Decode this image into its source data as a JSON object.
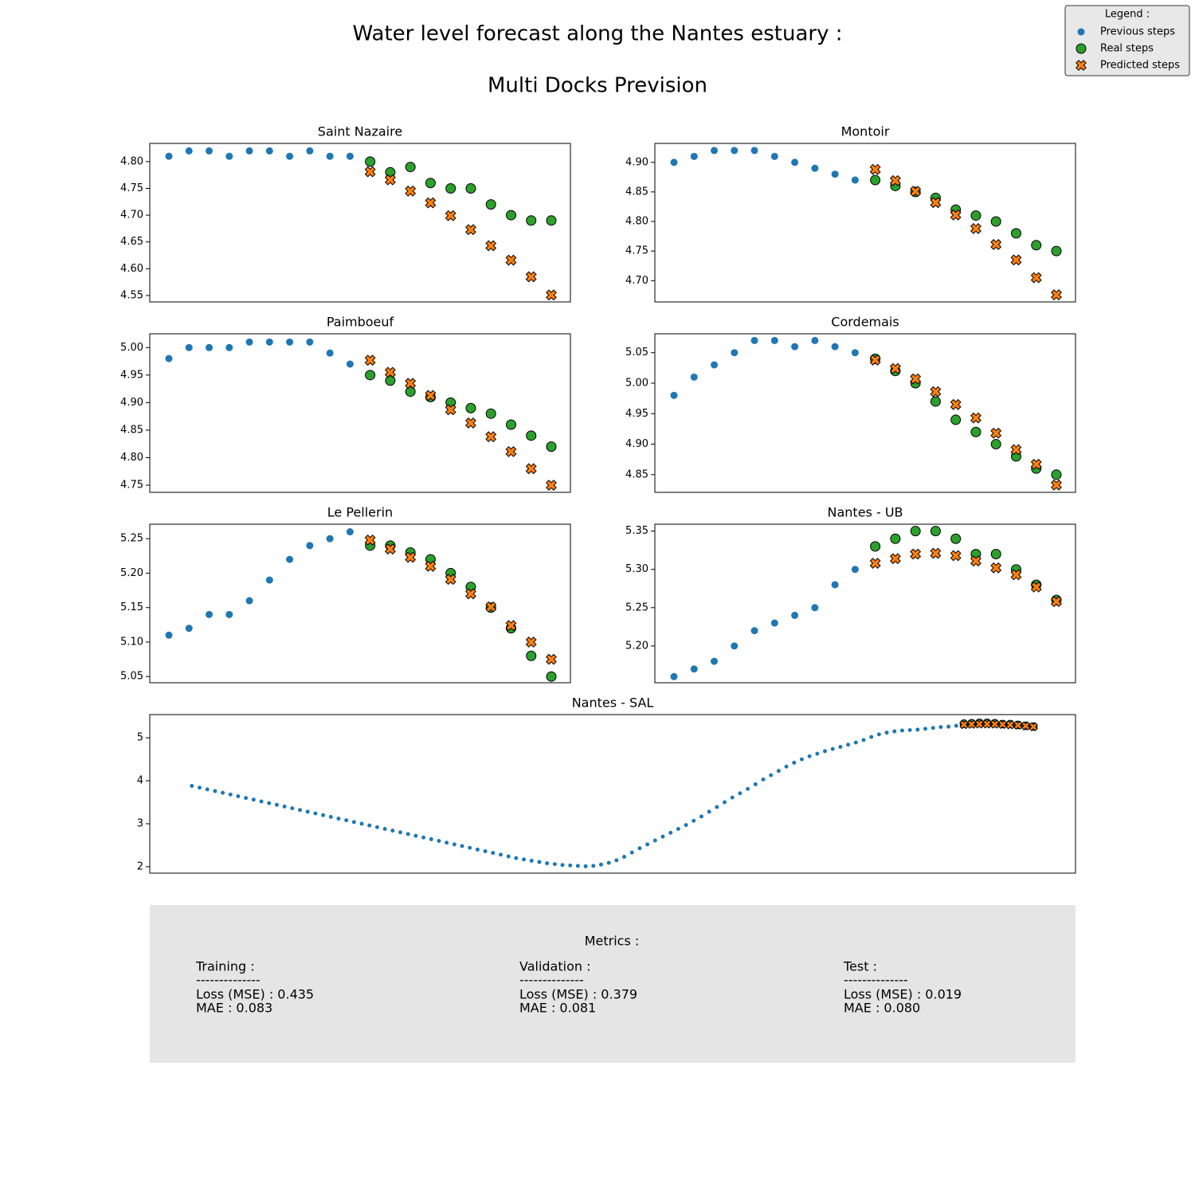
{
  "title": "Water level forecast along the Nantes estuary :",
  "subtitle": "Multi Docks Prevision",
  "legend_title": "Legend :",
  "metrics": {
    "title": "Metrics :",
    "sections": [
      {
        "title": "Training :",
        "separator": "--------------",
        "lines": [
          "Loss (MSE) :  0.435",
          "MAE :  0.083"
        ]
      },
      {
        "title": "Validation :",
        "separator": "--------------",
        "lines": [
          "Loss (MSE) :  0.379",
          "MAE :  0.081"
        ]
      },
      {
        "title": "Test :",
        "separator": "--------------",
        "lines": [
          "Loss (MSE) :  0.019",
          "MAE :  0.080"
        ]
      }
    ]
  },
  "chart_data": [
    {
      "type": "scatter",
      "title": "Saint Nazaire",
      "xlim": [
        -0.95,
        19.95
      ],
      "ylim": [
        4.538,
        4.834
      ],
      "yticks": [
        4.55,
        {
          "value": 4.6,
          "label": "4.60"
        },
        4.65,
        {
          "value": 4.7,
          "label": "4.70"
        },
        4.75,
        {
          "value": 4.8,
          "label": "4.80"
        }
      ],
      "series": [
        {
          "name": "Previous steps",
          "color": "#1f77b4",
          "marker": "dot",
          "x": [
            0,
            1,
            2,
            3,
            4,
            5,
            6,
            7,
            8,
            9
          ],
          "values": [
            4.81,
            4.82,
            4.82,
            4.81,
            4.82,
            4.82,
            4.81,
            4.82,
            4.81,
            4.81
          ]
        },
        {
          "name": "Real steps",
          "color": "#2ca02c",
          "marker": "circle",
          "x": [
            10,
            11,
            12,
            13,
            14,
            15,
            16,
            17,
            18,
            19
          ],
          "values": [
            4.8,
            4.78,
            4.79,
            4.76,
            4.75,
            4.75,
            4.72,
            4.7,
            4.69,
            4.69
          ]
        },
        {
          "name": "Predicted steps",
          "color": "#ff7f0e",
          "marker": "x",
          "x": [
            10,
            11,
            12,
            13,
            14,
            15,
            16,
            17,
            18,
            19
          ],
          "values": [
            4.781,
            4.766,
            4.745,
            4.723,
            4.699,
            4.673,
            4.643,
            4.616,
            4.585,
            4.551
          ]
        }
      ]
    },
    {
      "type": "scatter",
      "title": "Montoir",
      "xlim": [
        -0.95,
        19.95
      ],
      "ylim": [
        4.664,
        4.932
      ],
      "yticks": [
        {
          "value": 4.7,
          "label": "4.70"
        },
        4.75,
        {
          "value": 4.8,
          "label": "4.80"
        },
        4.85,
        {
          "value": 4.9,
          "label": "4.90"
        }
      ],
      "series": [
        {
          "name": "Previous steps",
          "color": "#1f77b4",
          "marker": "dot",
          "x": [
            0,
            1,
            2,
            3,
            4,
            5,
            6,
            7,
            8,
            9
          ],
          "values": [
            4.9,
            4.91,
            4.92,
            4.92,
            4.92,
            4.91,
            4.9,
            4.89,
            4.88,
            4.87
          ]
        },
        {
          "name": "Real steps",
          "color": "#2ca02c",
          "marker": "circle",
          "x": [
            10,
            11,
            12,
            13,
            14,
            15,
            16,
            17,
            18,
            19
          ],
          "values": [
            4.87,
            4.86,
            4.85,
            4.84,
            4.82,
            4.81,
            4.8,
            4.78,
            4.76,
            4.75
          ]
        },
        {
          "name": "Predicted steps",
          "color": "#ff7f0e",
          "marker": "x",
          "x": [
            10,
            11,
            12,
            13,
            14,
            15,
            16,
            17,
            18,
            19
          ],
          "values": [
            4.888,
            4.869,
            4.851,
            4.832,
            4.811,
            4.788,
            4.761,
            4.735,
            4.705,
            4.676
          ]
        }
      ]
    },
    {
      "type": "scatter",
      "title": "Paimboeuf",
      "xlim": [
        -0.95,
        19.95
      ],
      "ylim": [
        4.737,
        5.025
      ],
      "yticks": [
        4.75,
        {
          "value": 4.8,
          "label": "4.80"
        },
        4.85,
        {
          "value": 4.9,
          "label": "4.90"
        },
        4.95,
        {
          "value": 5,
          "label": "5.00"
        }
      ],
      "series": [
        {
          "name": "Previous steps",
          "color": "#1f77b4",
          "marker": "dot",
          "x": [
            0,
            1,
            2,
            3,
            4,
            5,
            6,
            7,
            8,
            9
          ],
          "values": [
            4.98,
            5.0,
            5.0,
            5.0,
            5.01,
            5.01,
            5.01,
            5.01,
            4.99,
            4.97
          ]
        },
        {
          "name": "Real steps",
          "color": "#2ca02c",
          "marker": "circle",
          "x": [
            10,
            11,
            12,
            13,
            14,
            15,
            16,
            17,
            18,
            19
          ],
          "values": [
            4.95,
            4.94,
            4.92,
            4.91,
            4.9,
            4.89,
            4.88,
            4.86,
            4.84,
            4.82
          ]
        },
        {
          "name": "Predicted steps",
          "color": "#ff7f0e",
          "marker": "x",
          "x": [
            10,
            11,
            12,
            13,
            14,
            15,
            16,
            17,
            18,
            19
          ],
          "values": [
            4.977,
            4.955,
            4.935,
            4.913,
            4.887,
            4.863,
            4.838,
            4.811,
            4.78,
            4.75
          ]
        }
      ]
    },
    {
      "type": "scatter",
      "title": "Cordemais",
      "xlim": [
        -0.95,
        19.95
      ],
      "ylim": [
        4.821,
        5.081
      ],
      "yticks": [
        4.85,
        {
          "value": 4.9,
          "label": "4.90"
        },
        4.95,
        {
          "value": 5,
          "label": "5.00"
        },
        5.05
      ],
      "series": [
        {
          "name": "Previous steps",
          "color": "#1f77b4",
          "marker": "dot",
          "x": [
            0,
            1,
            2,
            3,
            4,
            5,
            6,
            7,
            8,
            9
          ],
          "values": [
            4.98,
            5.01,
            5.03,
            5.05,
            5.07,
            5.07,
            5.06,
            5.07,
            5.06,
            5.05
          ]
        },
        {
          "name": "Real steps",
          "color": "#2ca02c",
          "marker": "circle",
          "x": [
            10,
            11,
            12,
            13,
            14,
            15,
            16,
            17,
            18,
            19
          ],
          "values": [
            5.04,
            5.02,
            5.0,
            4.97,
            4.94,
            4.92,
            4.9,
            4.88,
            4.86,
            4.85
          ]
        },
        {
          "name": "Predicted steps",
          "color": "#ff7f0e",
          "marker": "x",
          "x": [
            10,
            11,
            12,
            13,
            14,
            15,
            16,
            17,
            18,
            19
          ],
          "values": [
            5.038,
            5.024,
            5.007,
            4.986,
            4.965,
            4.943,
            4.918,
            4.891,
            4.867,
            4.833
          ]
        }
      ]
    },
    {
      "type": "scatter",
      "title": "Le Pellerin",
      "xlim": [
        -0.95,
        19.95
      ],
      "ylim": [
        5.041,
        5.271
      ],
      "yticks": [
        5.05,
        {
          "value": 5.1,
          "label": "5.10"
        },
        5.15,
        {
          "value": 5.2,
          "label": "5.20"
        },
        5.25
      ],
      "series": [
        {
          "name": "Previous steps",
          "color": "#1f77b4",
          "marker": "dot",
          "x": [
            0,
            1,
            2,
            3,
            4,
            5,
            6,
            7,
            8,
            9
          ],
          "values": [
            5.11,
            5.12,
            5.14,
            5.14,
            5.16,
            5.19,
            5.22,
            5.24,
            5.25,
            5.26
          ]
        },
        {
          "name": "Real steps",
          "color": "#2ca02c",
          "marker": "circle",
          "x": [
            10,
            11,
            12,
            13,
            14,
            15,
            16,
            17,
            18,
            19
          ],
          "values": [
            5.24,
            5.24,
            5.23,
            5.22,
            5.2,
            5.18,
            5.15,
            5.12,
            5.08,
            5.05
          ]
        },
        {
          "name": "Predicted steps",
          "color": "#ff7f0e",
          "marker": "x",
          "x": [
            10,
            11,
            12,
            13,
            14,
            15,
            16,
            17,
            18,
            19
          ],
          "values": [
            5.248,
            5.235,
            5.223,
            5.21,
            5.191,
            5.17,
            5.151,
            5.124,
            5.1,
            5.075
          ]
        }
      ]
    },
    {
      "type": "scatter",
      "title": "Nantes - UB",
      "xlim": [
        -0.95,
        19.95
      ],
      "ylim": [
        5.152,
        5.359
      ],
      "yticks": [
        {
          "value": 5.2,
          "label": "5.20"
        },
        5.25,
        {
          "value": 5.3,
          "label": "5.30"
        },
        5.35
      ],
      "series": [
        {
          "name": "Previous steps",
          "color": "#1f77b4",
          "marker": "dot",
          "x": [
            0,
            1,
            2,
            3,
            4,
            5,
            6,
            7,
            8,
            9
          ],
          "values": [
            5.16,
            5.17,
            5.18,
            5.2,
            5.22,
            5.23,
            5.24,
            5.25,
            5.28,
            5.3
          ]
        },
        {
          "name": "Real steps",
          "color": "#2ca02c",
          "marker": "circle",
          "x": [
            10,
            11,
            12,
            13,
            14,
            15,
            16,
            17,
            18,
            19
          ],
          "values": [
            5.33,
            5.34,
            5.35,
            5.35,
            5.34,
            5.32,
            5.32,
            5.3,
            5.28,
            5.26
          ]
        },
        {
          "name": "Predicted steps",
          "color": "#ff7f0e",
          "marker": "x",
          "x": [
            10,
            11,
            12,
            13,
            14,
            15,
            16,
            17,
            18,
            19
          ],
          "values": [
            5.308,
            5.314,
            5.32,
            5.321,
            5.318,
            5.311,
            5.302,
            5.293,
            5.277,
            5.258
          ]
        }
      ]
    },
    {
      "type": "scatter",
      "title": "Nantes - SAL",
      "xlim": [
        -5.45,
        114.45
      ],
      "ylim": [
        1.85,
        5.54
      ],
      "yticks": [
        2,
        3,
        4,
        5
      ],
      "series": [
        {
          "name": "Previous steps",
          "color": "#1f77b4",
          "marker": "dot",
          "x": [
            0,
            1,
            2,
            3,
            4,
            5,
            6,
            7,
            8,
            9,
            10,
            11,
            12,
            13,
            14,
            15,
            16,
            17,
            18,
            19,
            20,
            21,
            22,
            23,
            24,
            25,
            26,
            27,
            28,
            29,
            30,
            31,
            32,
            33,
            34,
            35,
            36,
            37,
            38,
            39,
            40,
            41,
            42,
            43,
            44,
            45,
            46,
            47,
            48,
            49,
            50,
            51,
            52,
            53,
            54,
            55,
            56,
            57,
            58,
            59,
            60,
            61,
            62,
            63,
            64,
            65,
            66,
            67,
            68,
            69,
            70,
            71,
            72,
            73,
            74,
            75,
            76,
            77,
            78,
            79,
            80,
            81,
            82,
            83,
            84,
            85,
            86,
            87,
            88,
            89,
            90,
            91,
            92,
            93,
            94,
            95,
            96,
            97,
            98,
            99
          ],
          "values": [
            3.88,
            3.84,
            3.8,
            3.76,
            3.72,
            3.68,
            3.64,
            3.6,
            3.56,
            3.52,
            3.48,
            3.44,
            3.4,
            3.36,
            3.32,
            3.28,
            3.24,
            3.2,
            3.16,
            3.12,
            3.08,
            3.04,
            3.0,
            2.96,
            2.92,
            2.88,
            2.84,
            2.8,
            2.76,
            2.72,
            2.68,
            2.64,
            2.6,
            2.56,
            2.52,
            2.48,
            2.44,
            2.4,
            2.36,
            2.32,
            2.28,
            2.24,
            2.2,
            2.17,
            2.14,
            2.11,
            2.08,
            2.06,
            2.04,
            2.03,
            2.02,
            2.01,
            2.02,
            2.05,
            2.09,
            2.15,
            2.23,
            2.33,
            2.43,
            2.52,
            2.61,
            2.7,
            2.79,
            2.88,
            2.97,
            3.07,
            3.17,
            3.28,
            3.39,
            3.5,
            3.61,
            3.71,
            3.81,
            3.92,
            4.03,
            4.13,
            4.23,
            4.33,
            4.42,
            4.5,
            4.57,
            4.63,
            4.69,
            4.74,
            4.79,
            4.84,
            4.89,
            4.95,
            5.02,
            5.08,
            5.12,
            5.15,
            5.17,
            5.18,
            5.19,
            5.21,
            5.23,
            5.25,
            5.26,
            5.28
          ]
        },
        {
          "name": "Real steps",
          "color": "#2ca02c",
          "marker": "circle",
          "x": [
            100,
            101,
            102,
            103,
            104,
            105,
            106,
            107,
            108,
            109
          ],
          "values": [
            5.33,
            5.34,
            5.35,
            5.35,
            5.34,
            5.32,
            5.32,
            5.3,
            5.28,
            5.26
          ]
        },
        {
          "name": "Predicted steps",
          "color": "#ff7f0e",
          "marker": "x",
          "x": [
            100,
            101,
            102,
            103,
            104,
            105,
            106,
            107,
            108,
            109
          ],
          "values": [
            5.308,
            5.314,
            5.32,
            5.321,
            5.318,
            5.311,
            5.302,
            5.293,
            5.277,
            5.258
          ]
        }
      ]
    }
  ]
}
